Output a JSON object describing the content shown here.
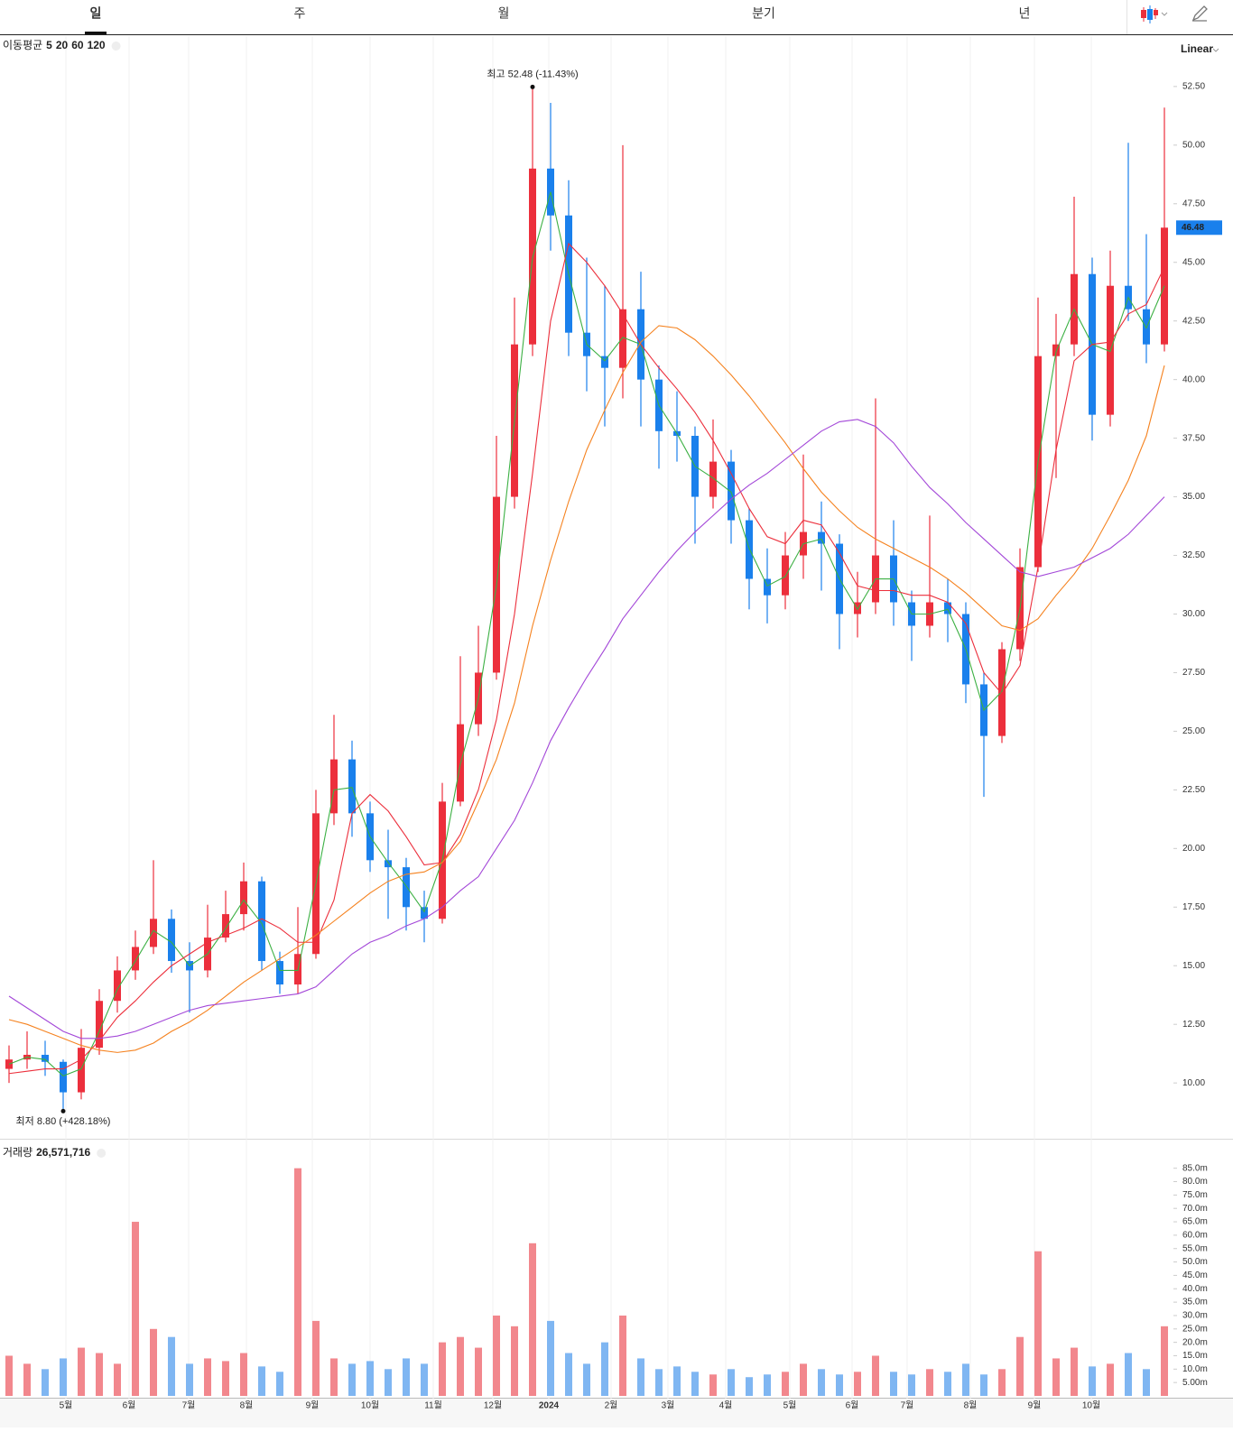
{
  "tabs": [
    "일",
    "주",
    "월",
    "분기",
    "년"
  ],
  "scale": "Linear",
  "chart_data": [
    {
      "type": "candlestick",
      "legend_title": "이동평균",
      "up_color": "#ec2f3c",
      "down_color": "#1a80ec",
      "annotations": [
        {
          "label": "최고 52.48 (-11.43%)",
          "at": "high"
        },
        {
          "label": "최저 8.80 (+428.18%)",
          "at": "low"
        }
      ],
      "open": [
        10.6,
        11.0,
        11.2,
        10.9,
        9.6,
        11.5,
        13.5,
        14.8,
        15.8,
        17.0,
        15.2,
        14.8,
        16.2,
        17.2,
        18.6,
        15.2,
        14.2,
        15.5,
        21.5,
        23.8,
        21.5,
        19.5,
        19.2,
        17.5,
        17.0,
        22.0,
        25.3,
        27.5,
        35.0,
        41.5,
        49.0,
        47.0,
        42.0,
        41.0,
        40.5,
        43.0,
        40.0,
        37.8,
        37.6,
        35.0,
        36.5,
        34.0,
        31.5,
        30.8,
        32.5,
        33.5,
        33.0,
        30.0,
        30.5,
        32.5,
        30.5,
        29.5,
        30.5,
        30.0,
        27.0,
        24.8,
        28.5,
        32.0,
        41.0,
        41.5,
        44.5,
        38.5,
        44.0,
        43.0,
        41.5
      ],
      "high": [
        11.6,
        12.2,
        11.8,
        11.0,
        12.3,
        14.0,
        15.4,
        16.5,
        19.5,
        17.4,
        16.0,
        17.6,
        18.2,
        19.4,
        18.8,
        15.6,
        17.5,
        22.5,
        25.7,
        24.6,
        22.0,
        20.8,
        19.6,
        18.2,
        22.8,
        28.2,
        29.5,
        37.6,
        43.5,
        52.48,
        51.8,
        48.5,
        45.2,
        44.0,
        50.0,
        44.6,
        40.6,
        39.5,
        38.0,
        38.3,
        37.0,
        34.5,
        32.8,
        33.5,
        36.8,
        34.8,
        33.4,
        31.8,
        39.2,
        34.0,
        31.0,
        34.2,
        31.5,
        30.5,
        27.5,
        28.8,
        32.8,
        43.5,
        42.8,
        47.8,
        45.2,
        45.5,
        50.1,
        46.2,
        51.6
      ],
      "low": [
        10.0,
        10.6,
        10.3,
        8.8,
        9.3,
        11.2,
        13.0,
        14.4,
        15.5,
        14.7,
        13.0,
        14.5,
        16.0,
        16.5,
        14.8,
        13.8,
        13.8,
        15.3,
        21.0,
        20.5,
        19.0,
        17.0,
        16.5,
        16.0,
        16.8,
        21.8,
        24.8,
        27.2,
        34.5,
        41.0,
        45.5,
        41.0,
        39.5,
        38.0,
        39.2,
        38.0,
        36.2,
        36.5,
        33.0,
        34.5,
        33.0,
        30.2,
        29.6,
        30.2,
        31.5,
        31.0,
        28.5,
        29.0,
        30.0,
        29.5,
        28.0,
        29.0,
        28.8,
        26.2,
        22.2,
        24.5,
        28.0,
        31.8,
        35.8,
        41.0,
        37.4,
        38.0,
        42.5,
        40.7,
        41.2
      ],
      "close": [
        11.0,
        11.2,
        10.9,
        9.6,
        11.5,
        13.5,
        14.8,
        15.8,
        17.0,
        15.2,
        14.8,
        16.2,
        17.2,
        18.6,
        15.2,
        14.2,
        15.5,
        21.5,
        23.8,
        21.5,
        19.5,
        19.2,
        17.5,
        17.0,
        22.0,
        25.3,
        27.5,
        35.0,
        41.5,
        49.0,
        47.0,
        42.0,
        41.0,
        40.5,
        43.0,
        40.0,
        37.8,
        37.6,
        35.0,
        36.5,
        34.0,
        31.5,
        30.8,
        32.5,
        33.5,
        33.0,
        30.0,
        30.5,
        32.5,
        30.5,
        29.5,
        30.5,
        30.0,
        27.0,
        24.8,
        28.5,
        32.0,
        41.0,
        41.5,
        44.5,
        38.5,
        44.0,
        43.0,
        41.5,
        46.48
      ],
      "series": [
        {
          "name": "5",
          "color": "#3cb043",
          "values": [
            10.8,
            11.1,
            11.0,
            10.3,
            10.6,
            12.2,
            14.0,
            15.2,
            16.5,
            16.0,
            15.0,
            15.5,
            16.6,
            17.8,
            16.8,
            14.8,
            14.8,
            18.5,
            22.5,
            22.6,
            20.5,
            19.4,
            18.4,
            17.3,
            19.5,
            23.6,
            26.4,
            31.2,
            38.2,
            45.2,
            48.0,
            44.5,
            41.5,
            40.8,
            41.8,
            41.5,
            38.9,
            37.7,
            36.3,
            35.8,
            35.2,
            32.8,
            31.2,
            31.6,
            33.0,
            33.2,
            31.5,
            30.2,
            31.5,
            31.5,
            30.0,
            30.0,
            30.2,
            28.5,
            25.9,
            26.7,
            30.2,
            36.5,
            41.2,
            43.0,
            41.5,
            41.2,
            43.5,
            42.2,
            44.0
          ]
        },
        {
          "name": "20",
          "color": "#ec2f3c",
          "values": [
            10.4,
            10.5,
            10.6,
            10.6,
            11.0,
            11.8,
            12.8,
            13.5,
            14.3,
            15.0,
            15.5,
            16.0,
            16.3,
            16.6,
            17.0,
            16.6,
            16.0,
            16.0,
            17.8,
            21.5,
            22.3,
            21.6,
            20.5,
            19.3,
            19.4,
            20.6,
            22.5,
            25.5,
            30.0,
            36.0,
            42.5,
            45.8,
            45.0,
            44.0,
            42.8,
            41.5,
            40.5,
            39.6,
            38.6,
            37.4,
            36.0,
            34.5,
            33.3,
            33.0,
            34.0,
            33.8,
            32.6,
            31.2,
            31.0,
            31.0,
            30.8,
            30.8,
            30.5,
            29.6,
            27.5,
            26.6,
            27.8,
            32.0,
            37.0,
            40.8,
            41.5,
            41.6,
            42.8,
            43.2,
            44.8
          ]
        },
        {
          "name": "60",
          "color": "#f5821f",
          "values": [
            12.7,
            12.5,
            12.2,
            11.9,
            11.6,
            11.4,
            11.3,
            11.4,
            11.7,
            12.2,
            12.6,
            13.1,
            13.7,
            14.3,
            14.8,
            15.3,
            15.8,
            16.3,
            16.9,
            17.5,
            18.1,
            18.6,
            18.9,
            19.0,
            19.4,
            20.3,
            22.0,
            23.8,
            26.2,
            29.5,
            32.3,
            34.8,
            37.0,
            38.7,
            40.3,
            41.6,
            42.3,
            42.2,
            41.7,
            41.0,
            40.2,
            39.3,
            38.3,
            37.3,
            36.2,
            35.2,
            34.4,
            33.7,
            33.2,
            32.8,
            32.4,
            32.0,
            31.5,
            30.9,
            30.2,
            29.5,
            29.3,
            29.8,
            30.8,
            31.7,
            32.8,
            34.2,
            35.7,
            37.6,
            40.6
          ]
        },
        {
          "name": "120",
          "color": "#a347d8",
          "values": [
            13.7,
            13.2,
            12.7,
            12.2,
            11.9,
            11.9,
            12.0,
            12.2,
            12.5,
            12.8,
            13.1,
            13.3,
            13.4,
            13.5,
            13.6,
            13.7,
            13.8,
            14.1,
            14.8,
            15.5,
            16.0,
            16.3,
            16.7,
            17.0,
            17.5,
            18.2,
            18.8,
            20.0,
            21.2,
            22.8,
            24.6,
            26.0,
            27.3,
            28.5,
            29.8,
            30.8,
            31.8,
            32.7,
            33.5,
            34.2,
            34.9,
            35.5,
            36.0,
            36.6,
            37.2,
            37.8,
            38.2,
            38.3,
            38.0,
            37.3,
            36.3,
            35.4,
            34.7,
            33.9,
            33.2,
            32.5,
            31.8,
            31.6,
            31.8,
            32.0,
            32.4,
            32.8,
            33.4,
            34.2,
            35.0
          ]
        }
      ],
      "ylim": [
        7.62,
        54.65
      ],
      "yticks": [
        {
          "value": 10,
          "label": "10.00"
        },
        {
          "value": 12.5,
          "label": "12.50"
        },
        {
          "value": 15,
          "label": "15.00"
        },
        {
          "value": 17.5,
          "label": "17.50"
        },
        {
          "value": 20,
          "label": "20.00"
        },
        {
          "value": 22.5,
          "label": "22.50"
        },
        {
          "value": 25,
          "label": "25.00"
        },
        {
          "value": 27.5,
          "label": "27.50"
        },
        {
          "value": 30,
          "label": "30.00"
        },
        {
          "value": 32.5,
          "label": "32.50"
        },
        {
          "value": 35,
          "label": "35.00"
        },
        {
          "value": 37.5,
          "label": "37.50"
        },
        {
          "value": 40,
          "label": "40.00"
        },
        {
          "value": 42.5,
          "label": "42.50"
        },
        {
          "value": 45,
          "label": "45.00"
        },
        {
          "value": 47.5,
          "label": "47.50"
        },
        {
          "value": 50,
          "label": "50.00"
        },
        {
          "value": 52.5,
          "label": "52.50"
        }
      ],
      "xticks": [
        {
          "value": 3.15,
          "label": "5월"
        },
        {
          "value": 6.65,
          "label": "6월"
        },
        {
          "value": 9.95,
          "label": "7월"
        },
        {
          "value": 13.15,
          "label": "8월"
        },
        {
          "value": 16.8,
          "label": "9월"
        },
        {
          "value": 20,
          "label": "10월"
        },
        {
          "value": 23.5,
          "label": "11월"
        },
        {
          "value": 26.8,
          "label": "12월"
        },
        {
          "value": 29.9,
          "label": "2024"
        },
        {
          "value": 33.35,
          "label": "2월"
        },
        {
          "value": 36.5,
          "label": "3월"
        },
        {
          "value": 39.7,
          "label": "4월"
        },
        {
          "value": 43.25,
          "label": "5월"
        },
        {
          "value": 46.7,
          "label": "6월"
        },
        {
          "value": 49.75,
          "label": "7월"
        },
        {
          "value": 53.25,
          "label": "8월"
        },
        {
          "value": 56.8,
          "label": "9월"
        },
        {
          "value": 59.95,
          "label": "10월"
        }
      ],
      "grid": false
    },
    {
      "type": "bar",
      "title": "거래량",
      "subtitle": "26,571,716",
      "values": [
        15,
        12,
        10,
        14,
        18,
        16,
        12,
        65,
        25,
        22,
        12,
        14,
        13,
        16,
        11,
        9,
        85,
        28,
        14,
        12,
        13,
        10,
        14,
        12,
        20,
        22,
        18,
        30,
        26,
        57,
        28,
        16,
        12,
        20,
        30,
        14,
        10,
        11,
        9,
        8,
        10,
        7,
        8,
        9,
        12,
        10,
        8,
        9,
        15,
        9,
        8,
        10,
        9,
        12,
        8,
        10,
        22,
        54,
        14,
        18,
        11,
        12,
        16,
        10,
        26
      ],
      "ylim": [
        0,
        95
      ],
      "yticks": [
        {
          "value": 5,
          "label": "5.00m"
        },
        {
          "value": 10,
          "label": "10.0m"
        },
        {
          "value": 15,
          "label": "15.0m"
        },
        {
          "value": 20,
          "label": "20.0m"
        },
        {
          "value": 25,
          "label": "25.0m"
        },
        {
          "value": 30,
          "label": "30.0m"
        },
        {
          "value": 35,
          "label": "35.0m"
        },
        {
          "value": 40,
          "label": "40.0m"
        },
        {
          "value": 45,
          "label": "45.0m"
        },
        {
          "value": 50,
          "label": "50.0m"
        },
        {
          "value": 55,
          "label": "55.0m"
        },
        {
          "value": 60,
          "label": "60.0m"
        },
        {
          "value": 65,
          "label": "65.0m"
        },
        {
          "value": 70,
          "label": "70.0m"
        },
        {
          "value": 75,
          "label": "75.0m"
        },
        {
          "value": 80,
          "label": "80.0m"
        },
        {
          "value": 85,
          "label": "85.0m"
        }
      ]
    }
  ]
}
